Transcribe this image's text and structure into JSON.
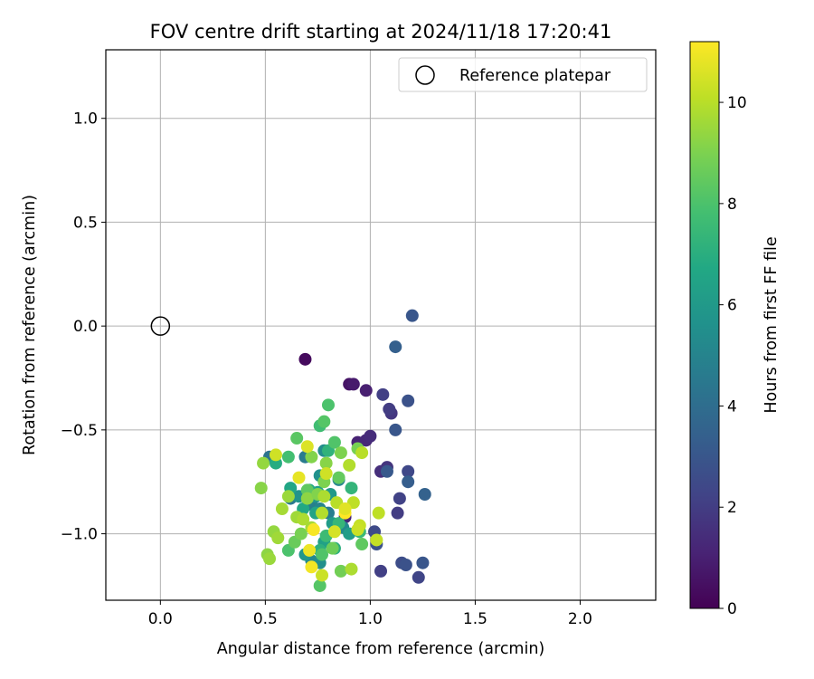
{
  "chart_data": {
    "type": "scatter",
    "title": "FOV centre drift starting at 2024/11/18 17:20:41",
    "xlabel": "Angular distance from reference (arcmin)",
    "ylabel": "Rotation from reference (arcmin)",
    "xlim": [
      -0.26,
      2.36
    ],
    "ylim": [
      -1.32,
      1.33
    ],
    "xticks": [
      0.0,
      0.5,
      1.0,
      1.5,
      2.0
    ],
    "xtick_labels": [
      "0.0",
      "0.5",
      "1.0",
      "1.5",
      "2.0"
    ],
    "yticks": [
      1.0,
      0.5,
      0.0,
      -0.5,
      -1.0
    ],
    "ytick_labels": [
      "1.0",
      "0.5",
      "0.0",
      "−0.5",
      "−1.0"
    ],
    "grid": true,
    "colormap": "viridis",
    "colorbar": {
      "label": "Hours from first FF file",
      "range": [
        0,
        11.2
      ],
      "ticks": [
        0,
        2,
        4,
        6,
        8,
        10
      ],
      "tick_labels": [
        "0",
        "2",
        "4",
        "6",
        "8",
        "10"
      ]
    },
    "legend": {
      "position": "top-right",
      "label": "Reference platepar"
    },
    "reference": {
      "x": 0.0,
      "y": 0.0
    },
    "points": [
      {
        "x": 0.69,
        "y": -0.16,
        "h": 0.3
      },
      {
        "x": 0.9,
        "y": -0.28,
        "h": 0.6
      },
      {
        "x": 0.92,
        "y": -0.28,
        "h": 0.8
      },
      {
        "x": 0.98,
        "y": -0.31,
        "h": 1.0
      },
      {
        "x": 0.94,
        "y": -0.56,
        "h": 1.1
      },
      {
        "x": 0.98,
        "y": -0.55,
        "h": 1.3
      },
      {
        "x": 1.0,
        "y": -0.53,
        "h": 1.4
      },
      {
        "x": 1.05,
        "y": -0.7,
        "h": 1.5
      },
      {
        "x": 1.08,
        "y": -0.68,
        "h": 1.7
      },
      {
        "x": 1.1,
        "y": -0.42,
        "h": 1.8
      },
      {
        "x": 1.09,
        "y": -0.4,
        "h": 2.0
      },
      {
        "x": 1.06,
        "y": -0.33,
        "h": 2.1
      },
      {
        "x": 1.14,
        "y": -0.83,
        "h": 2.2
      },
      {
        "x": 1.13,
        "y": -0.9,
        "h": 2.0
      },
      {
        "x": 1.18,
        "y": -0.7,
        "h": 2.4
      },
      {
        "x": 1.05,
        "y": -1.18,
        "h": 2.1
      },
      {
        "x": 1.23,
        "y": -1.21,
        "h": 2.3
      },
      {
        "x": 1.15,
        "y": -1.14,
        "h": 2.6
      },
      {
        "x": 1.17,
        "y": -1.15,
        "h": 2.8
      },
      {
        "x": 1.25,
        "y": -1.14,
        "h": 3.0
      },
      {
        "x": 1.18,
        "y": -0.36,
        "h": 2.8
      },
      {
        "x": 1.12,
        "y": -0.5,
        "h": 3.0
      },
      {
        "x": 1.08,
        "y": -0.7,
        "h": 3.1
      },
      {
        "x": 1.02,
        "y": -0.99,
        "h": 2.5
      },
      {
        "x": 1.03,
        "y": -1.05,
        "h": 2.8
      },
      {
        "x": 1.18,
        "y": -0.75,
        "h": 3.3
      },
      {
        "x": 1.26,
        "y": -0.81,
        "h": 3.5
      },
      {
        "x": 1.12,
        "y": -0.1,
        "h": 3.4
      },
      {
        "x": 1.2,
        "y": 0.05,
        "h": 3.0
      },
      {
        "x": 0.88,
        "y": -0.92,
        "h": 1.2
      },
      {
        "x": 0.52,
        "y": -0.63,
        "h": 4.3
      },
      {
        "x": 0.62,
        "y": -0.83,
        "h": 4.5
      },
      {
        "x": 0.69,
        "y": -0.63,
        "h": 4.6
      },
      {
        "x": 0.72,
        "y": -0.86,
        "h": 4.8
      },
      {
        "x": 0.76,
        "y": -0.88,
        "h": 5.0
      },
      {
        "x": 0.8,
        "y": -0.9,
        "h": 4.7
      },
      {
        "x": 0.85,
        "y": -0.74,
        "h": 5.1
      },
      {
        "x": 0.87,
        "y": -0.97,
        "h": 5.3
      },
      {
        "x": 0.78,
        "y": -0.6,
        "h": 5.4
      },
      {
        "x": 0.76,
        "y": -0.72,
        "h": 5.6
      },
      {
        "x": 0.66,
        "y": -0.82,
        "h": 5.7
      },
      {
        "x": 0.74,
        "y": -0.82,
        "h": 5.8
      },
      {
        "x": 0.81,
        "y": -0.81,
        "h": 6.0
      },
      {
        "x": 0.72,
        "y": -1.13,
        "h": 5.2
      },
      {
        "x": 0.76,
        "y": -1.14,
        "h": 5.5
      },
      {
        "x": 0.69,
        "y": -1.1,
        "h": 5.9
      },
      {
        "x": 0.82,
        "y": -0.95,
        "h": 6.1
      },
      {
        "x": 0.9,
        "y": -1.0,
        "h": 6.2
      },
      {
        "x": 0.75,
        "y": -0.8,
        "h": 6.3
      },
      {
        "x": 0.78,
        "y": -1.04,
        "h": 6.4
      },
      {
        "x": 0.74,
        "y": -0.9,
        "h": 6.5
      },
      {
        "x": 0.62,
        "y": -0.78,
        "h": 6.6
      },
      {
        "x": 0.68,
        "y": -0.88,
        "h": 6.7
      },
      {
        "x": 0.71,
        "y": -0.79,
        "h": 6.8
      },
      {
        "x": 0.55,
        "y": -0.66,
        "h": 6.9
      },
      {
        "x": 0.83,
        "y": -1.07,
        "h": 7.0
      },
      {
        "x": 0.76,
        "y": -1.08,
        "h": 7.1
      },
      {
        "x": 0.8,
        "y": -0.6,
        "h": 7.2
      },
      {
        "x": 0.91,
        "y": -0.78,
        "h": 7.3
      },
      {
        "x": 0.85,
        "y": -0.95,
        "h": 7.4
      },
      {
        "x": 0.95,
        "y": -0.99,
        "h": 7.5
      },
      {
        "x": 0.79,
        "y": -1.01,
        "h": 7.6
      },
      {
        "x": 0.76,
        "y": -0.48,
        "h": 7.7
      },
      {
        "x": 0.8,
        "y": -0.38,
        "h": 8.0
      },
      {
        "x": 0.83,
        "y": -0.56,
        "h": 8.1
      },
      {
        "x": 0.78,
        "y": -0.46,
        "h": 8.2
      },
      {
        "x": 0.65,
        "y": -0.54,
        "h": 8.3
      },
      {
        "x": 0.61,
        "y": -0.63,
        "h": 7.8
      },
      {
        "x": 0.7,
        "y": -0.79,
        "h": 8.4
      },
      {
        "x": 0.85,
        "y": -0.73,
        "h": 8.5
      },
      {
        "x": 0.61,
        "y": -1.08,
        "h": 8.0
      },
      {
        "x": 0.64,
        "y": -1.04,
        "h": 8.6
      },
      {
        "x": 0.77,
        "y": -1.1,
        "h": 8.1
      },
      {
        "x": 0.82,
        "y": -1.07,
        "h": 8.7
      },
      {
        "x": 0.86,
        "y": -1.18,
        "h": 8.8
      },
      {
        "x": 0.96,
        "y": -1.05,
        "h": 8.4
      },
      {
        "x": 0.76,
        "y": -1.25,
        "h": 8.2
      },
      {
        "x": 0.67,
        "y": -1.0,
        "h": 8.9
      },
      {
        "x": 0.94,
        "y": -0.59,
        "h": 8.9
      },
      {
        "x": 0.86,
        "y": -0.61,
        "h": 9.0
      },
      {
        "x": 0.72,
        "y": -0.63,
        "h": 9.1
      },
      {
        "x": 0.79,
        "y": -0.66,
        "h": 9.2
      },
      {
        "x": 0.78,
        "y": -0.75,
        "h": 9.0
      },
      {
        "x": 0.7,
        "y": -0.83,
        "h": 9.3
      },
      {
        "x": 0.75,
        "y": -0.81,
        "h": 9.1
      },
      {
        "x": 0.48,
        "y": -0.78,
        "h": 9.2
      },
      {
        "x": 0.49,
        "y": -0.66,
        "h": 9.4
      },
      {
        "x": 0.51,
        "y": -1.1,
        "h": 9.3
      },
      {
        "x": 0.52,
        "y": -1.12,
        "h": 9.5
      },
      {
        "x": 0.54,
        "y": -0.99,
        "h": 9.4
      },
      {
        "x": 0.56,
        "y": -1.02,
        "h": 9.6
      },
      {
        "x": 0.58,
        "y": -0.88,
        "h": 9.7
      },
      {
        "x": 0.61,
        "y": -0.82,
        "h": 9.5
      },
      {
        "x": 0.65,
        "y": -0.92,
        "h": 9.6
      },
      {
        "x": 0.68,
        "y": -0.93,
        "h": 9.8
      },
      {
        "x": 0.72,
        "y": -0.97,
        "h": 9.7
      },
      {
        "x": 0.77,
        "y": -0.9,
        "h": 9.9
      },
      {
        "x": 0.78,
        "y": -0.82,
        "h": 9.8
      },
      {
        "x": 0.84,
        "y": -0.85,
        "h": 10.0
      },
      {
        "x": 0.9,
        "y": -0.67,
        "h": 9.9
      },
      {
        "x": 0.96,
        "y": -0.61,
        "h": 10.0
      },
      {
        "x": 0.92,
        "y": -0.85,
        "h": 10.1
      },
      {
        "x": 0.95,
        "y": -0.96,
        "h": 10.2
      },
      {
        "x": 0.94,
        "y": -0.98,
        "h": 10.3
      },
      {
        "x": 1.04,
        "y": -0.9,
        "h": 10.1
      },
      {
        "x": 1.03,
        "y": -1.03,
        "h": 10.2
      },
      {
        "x": 0.91,
        "y": -1.17,
        "h": 9.8
      },
      {
        "x": 0.77,
        "y": -1.2,
        "h": 10.3
      },
      {
        "x": 0.79,
        "y": -0.71,
        "h": 10.4
      },
      {
        "x": 0.83,
        "y": -0.99,
        "h": 10.5
      },
      {
        "x": 0.7,
        "y": -0.58,
        "h": 10.6
      },
      {
        "x": 0.55,
        "y": -0.62,
        "h": 10.4
      },
      {
        "x": 0.66,
        "y": -0.73,
        "h": 10.8
      },
      {
        "x": 0.71,
        "y": -1.08,
        "h": 10.9
      },
      {
        "x": 0.72,
        "y": -1.16,
        "h": 11.0
      },
      {
        "x": 0.73,
        "y": -0.98,
        "h": 11.1
      },
      {
        "x": 0.88,
        "y": -0.9,
        "h": 11.2
      },
      {
        "x": 0.88,
        "y": -0.88,
        "h": 10.7
      }
    ]
  }
}
